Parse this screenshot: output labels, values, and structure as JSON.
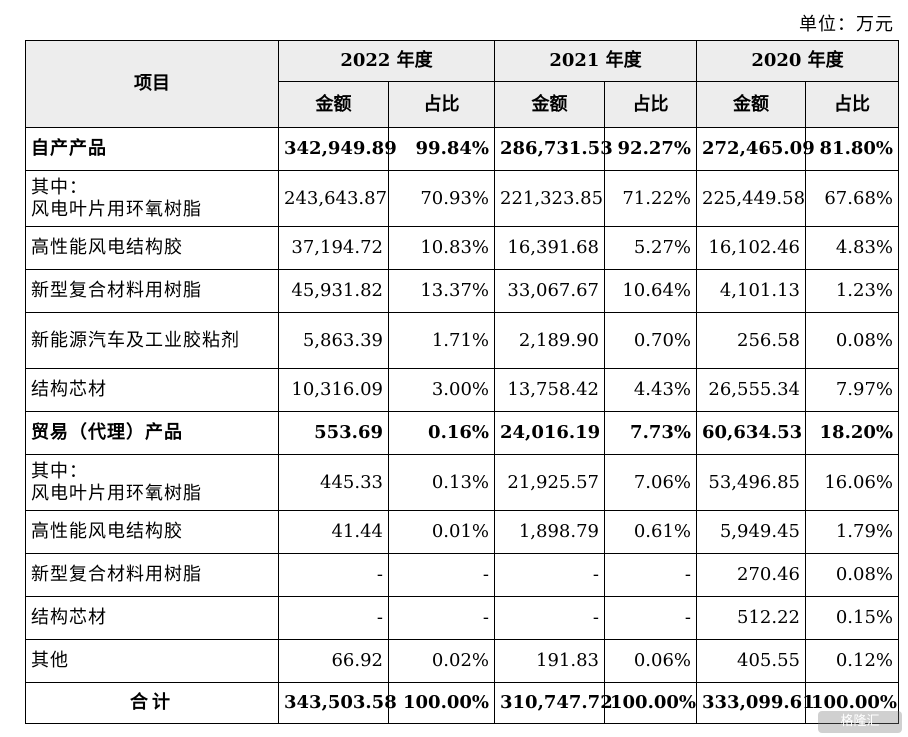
{
  "unit_label": "单位：万元",
  "header": {
    "item_label": "项目",
    "years": [
      "2022 年度",
      "2021 年度",
      "2020 年度"
    ],
    "amount_label": "金额",
    "ratio_label": "占比"
  },
  "rows": [
    {
      "label": "自产产品",
      "bold": true,
      "values": [
        "342,949.89",
        "99.84%",
        "286,731.53",
        "92.27%",
        "272,465.09",
        "81.80%"
      ]
    },
    {
      "label": "其中：\n风电叶片用环氧树脂",
      "tall": true,
      "values": [
        "243,643.87",
        "70.93%",
        "221,323.85",
        "71.22%",
        "225,449.58",
        "67.68%"
      ]
    },
    {
      "label": "高性能风电结构胶",
      "values": [
        "37,194.72",
        "10.83%",
        "16,391.68",
        "5.27%",
        "16,102.46",
        "4.83%"
      ]
    },
    {
      "label": "新型复合材料用树脂",
      "values": [
        "45,931.82",
        "13.37%",
        "33,067.67",
        "10.64%",
        "4,101.13",
        "1.23%"
      ]
    },
    {
      "label": "新能源汽车及工业胶粘剂",
      "tall": true,
      "values": [
        "5,863.39",
        "1.71%",
        "2,189.90",
        "0.70%",
        "256.58",
        "0.08%"
      ]
    },
    {
      "label": "结构芯材",
      "values": [
        "10,316.09",
        "3.00%",
        "13,758.42",
        "4.43%",
        "26,555.34",
        "7.97%"
      ]
    },
    {
      "label": "贸易（代理）产品",
      "bold": true,
      "values": [
        "553.69",
        "0.16%",
        "24,016.19",
        "7.73%",
        "60,634.53",
        "18.20%"
      ]
    },
    {
      "label": "其中：\n风电叶片用环氧树脂",
      "tall": true,
      "values": [
        "445.33",
        "0.13%",
        "21,925.57",
        "7.06%",
        "53,496.85",
        "16.06%"
      ]
    },
    {
      "label": "高性能风电结构胶",
      "values": [
        "41.44",
        "0.01%",
        "1,898.79",
        "0.61%",
        "5,949.45",
        "1.79%"
      ]
    },
    {
      "label": "新型复合材料用树脂",
      "values": [
        "-",
        "-",
        "-",
        "-",
        "270.46",
        "0.08%"
      ]
    },
    {
      "label": "结构芯材",
      "values": [
        "-",
        "-",
        "-",
        "-",
        "512.22",
        "0.15%"
      ]
    },
    {
      "label": "其他",
      "values": [
        "66.92",
        "0.02%",
        "191.83",
        "0.06%",
        "405.55",
        "0.12%"
      ]
    },
    {
      "label": "合计",
      "bold": true,
      "total": true,
      "values": [
        "343,503.58",
        "100.00%",
        "310,747.72",
        "100.00%",
        "333,099.61",
        "100.00%"
      ]
    }
  ],
  "watermark": "格隆汇"
}
